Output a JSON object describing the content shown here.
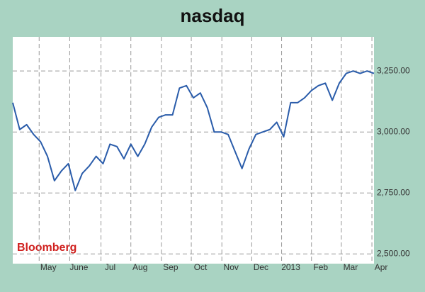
{
  "chart_data": {
    "type": "line",
    "title": "nasdaq",
    "annotation": "Bloomberg",
    "series": [
      {
        "name": "NASDAQ",
        "color": "#2a5caa",
        "values": [
          3120,
          3010,
          3030,
          2990,
          2960,
          2900,
          2800,
          2840,
          2870,
          2760,
          2830,
          2860,
          2900,
          2870,
          2950,
          2940,
          2890,
          2950,
          2900,
          2950,
          3020,
          3060,
          3070,
          3070,
          3180,
          3190,
          3140,
          3160,
          3100,
          3000,
          3000,
          2990,
          2920,
          2850,
          2930,
          2990,
          3000,
          3010,
          3040,
          2980,
          3120,
          3120,
          3140,
          3170,
          3190,
          3200,
          3130,
          3200,
          3240,
          3250,
          3240,
          3250,
          3240
        ]
      }
    ],
    "xlim": [
      0,
      52
    ],
    "xticks": [
      {
        "value": 3.8,
        "label": "May"
      },
      {
        "value": 8.2,
        "label": "June"
      },
      {
        "value": 12.7,
        "label": "Jul"
      },
      {
        "value": 17.0,
        "label": "Aug"
      },
      {
        "value": 21.4,
        "label": "Sep"
      },
      {
        "value": 25.7,
        "label": "Oct"
      },
      {
        "value": 30.1,
        "label": "Nov"
      },
      {
        "value": 34.4,
        "label": "Dec"
      },
      {
        "value": 38.7,
        "label": "2013"
      },
      {
        "value": 43.0,
        "label": "Feb"
      },
      {
        "value": 47.3,
        "label": "Mar"
      },
      {
        "value": 51.7,
        "label": "Apr"
      }
    ],
    "ylim": [
      2460,
      3390
    ],
    "yticks": [
      {
        "value": 2500,
        "label": "2,500.00"
      },
      {
        "value": 2750,
        "label": "2,750.00"
      },
      {
        "value": 3000,
        "label": "3,000.00"
      },
      {
        "value": 3250,
        "label": "3,250.00"
      }
    ],
    "grid": true
  }
}
